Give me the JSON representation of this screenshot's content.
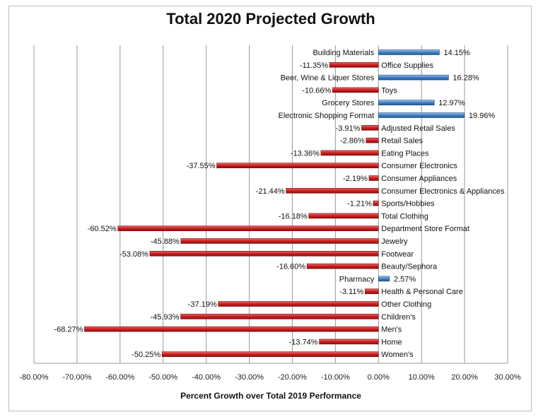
{
  "chart_data": {
    "type": "bar",
    "orientation": "horizontal",
    "title": "Total 2020 Projected Growth",
    "xlabel": "Percent Growth over Total 2019 Performance",
    "ylabel": "",
    "xlim": [
      -80,
      30
    ],
    "xticks": [
      -80,
      -70,
      -60,
      -50,
      -40,
      -30,
      -20,
      -10,
      0,
      10,
      20,
      30
    ],
    "xtick_labels": [
      "-80.00%",
      "-70.00%",
      "-60.00%",
      "-50.00%",
      "-40.00%",
      "-30.00%",
      "-20.00%",
      "-10.00%",
      "0.00%",
      "10.00%",
      "20.00%",
      "30.00%"
    ],
    "grid": "vertical",
    "positive_color": "#3f7fc4",
    "negative_color": "#cc1f1f",
    "categories": [
      "Building Materials",
      "Office Supplies",
      "Beer, Wine & Liquer Stores",
      "Toys",
      "Grocery Stores",
      "Electronic Shopping Format",
      "Adjusted Retail Sales",
      "Retail Sales",
      "Eating Places",
      "Consumer Electronics",
      "Consumer Appliances",
      "Consumer Electronics & Appliances",
      "Sports/Hobbies",
      "Total Clothing",
      "Department Store Format",
      "Jewelry",
      "Footwear",
      "Beauty/Sephora",
      "Pharmacy",
      "Health & Personal Care",
      "Other Clothing",
      "Children's",
      "Men's",
      "Home",
      "Women's"
    ],
    "values": [
      14.15,
      -11.35,
      16.28,
      -10.66,
      12.97,
      19.96,
      -3.91,
      -2.86,
      -13.36,
      -37.55,
      -2.19,
      -21.44,
      -1.21,
      -16.18,
      -60.52,
      -45.88,
      -53.08,
      -16.6,
      2.57,
      -3.11,
      -37.19,
      -45.93,
      -68.27,
      -13.74,
      -50.25
    ],
    "value_labels": [
      "14.15%",
      "-11.35%",
      "16.28%",
      "-10.66%",
      "12.97%",
      "19.96%",
      "-3.91%",
      "-2.86%",
      "-13.36%",
      "-37.55%",
      "-2.19%",
      "-21.44%",
      "-1.21%",
      "-16.18%",
      "-60.52%",
      "-45.88%",
      "-53.08%",
      "-16.60%",
      "2.57%",
      "-3.11%",
      "-37.19%",
      "-45.93%",
      "-68.27%",
      "-13.74%",
      "-50.25%"
    ]
  }
}
